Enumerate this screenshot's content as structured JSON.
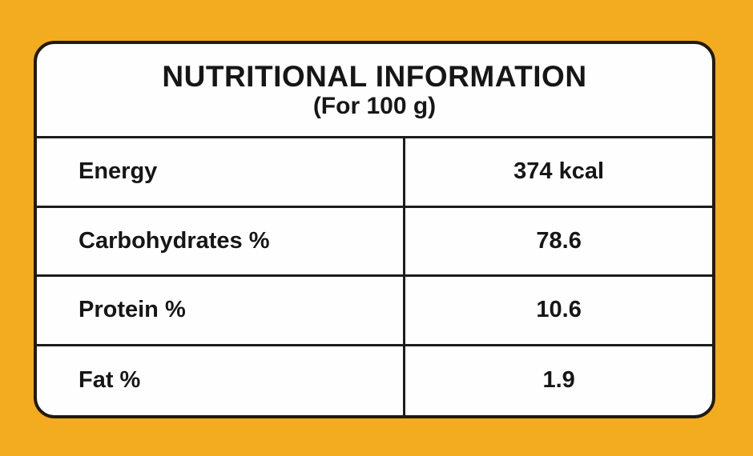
{
  "colors": {
    "background": "#F3AB1F",
    "panel": "#FEFEFE",
    "border": "#1C1C1C",
    "text": "#161616"
  },
  "table": {
    "title": "NUTRITIONAL INFORMATION",
    "subtitle": "(For 100 g)",
    "rows": [
      {
        "label": "Energy",
        "value": "374 kcal"
      },
      {
        "label": "Carbohydrates %",
        "value": "78.6"
      },
      {
        "label": "Protein %",
        "value": "10.6"
      },
      {
        "label": "Fat %",
        "value": "1.9"
      }
    ]
  },
  "chart_data": {
    "type": "table",
    "title": "NUTRITIONAL INFORMATION (For 100 g)",
    "categories": [
      "Energy",
      "Carbohydrates %",
      "Protein %",
      "Fat %"
    ],
    "values": [
      "374 kcal",
      "78.6",
      "10.6",
      "1.9"
    ]
  }
}
